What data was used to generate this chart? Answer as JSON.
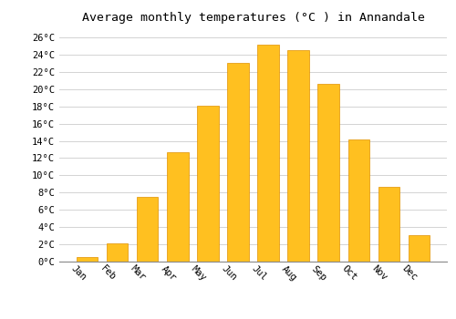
{
  "title": "Average monthly temperatures (°C ) in Annandale",
  "months": [
    "Jan",
    "Feb",
    "Mar",
    "Apr",
    "May",
    "Jun",
    "Jul",
    "Aug",
    "Sep",
    "Oct",
    "Nov",
    "Dec"
  ],
  "values": [
    0.5,
    2.1,
    7.5,
    12.7,
    18.1,
    23.0,
    25.2,
    24.5,
    20.6,
    14.2,
    8.7,
    3.1
  ],
  "bar_color": "#FFC020",
  "bar_edge_color": "#E09000",
  "background_color": "#ffffff",
  "grid_color": "#cccccc",
  "ylim": [
    0,
    27
  ],
  "yticks": [
    0,
    2,
    4,
    6,
    8,
    10,
    12,
    14,
    16,
    18,
    20,
    22,
    24,
    26
  ],
  "ytick_labels": [
    "0°C",
    "2°C",
    "4°C",
    "6°C",
    "8°C",
    "10°C",
    "12°C",
    "14°C",
    "16°C",
    "18°C",
    "20°C",
    "22°C",
    "24°C",
    "26°C"
  ],
  "title_fontsize": 9.5,
  "tick_fontsize": 7.5,
  "font_family": "monospace",
  "bar_width": 0.7
}
